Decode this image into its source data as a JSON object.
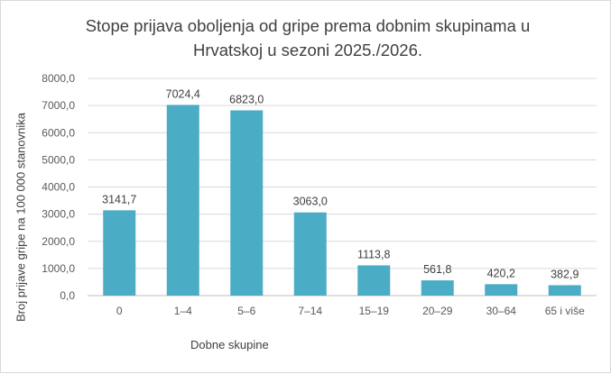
{
  "chart_data": {
    "type": "bar",
    "title": "Stope prijava oboljenja od gripe prema dobnim skupinama u Hrvatskoj u sezoni 2025./2026.",
    "xlabel": "Dobne skupine",
    "ylabel": "Broj prijave gripe na 100 000 stanovnika",
    "categories": [
      "0",
      "1–4",
      "5–6",
      "7–14",
      "15–19",
      "20–29",
      "30–64",
      "65 i više"
    ],
    "values": [
      3141.7,
      7024.4,
      6823.0,
      3063.0,
      1113.8,
      561.8,
      420.2,
      382.9
    ],
    "value_labels": [
      "3141,7",
      "7024,4",
      "6823,0",
      "3063,0",
      "1113,8",
      "561,8",
      "420,2",
      "382,9"
    ],
    "yticks": [
      "0,0",
      "1000,0",
      "2000,0",
      "3000,0",
      "4000,0",
      "5000,0",
      "6000,0",
      "7000,0",
      "8000,0"
    ],
    "ylim": [
      0,
      8000
    ],
    "grid": true,
    "legend": "none",
    "bar_color": "#4bacc6",
    "grid_color": "#d9d9d9"
  }
}
